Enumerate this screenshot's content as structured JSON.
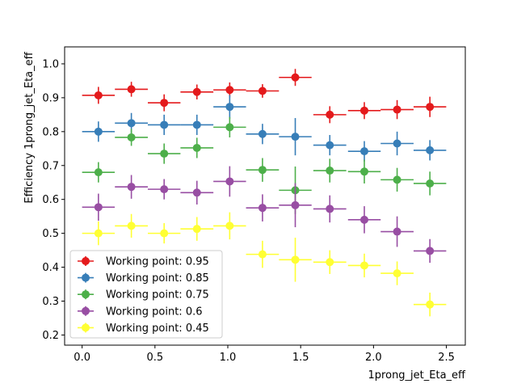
{
  "chart_data": {
    "type": "scatter",
    "title": "",
    "xlabel": "1prong_jet_Eta_eff",
    "ylabel": "Efficiency 1prong_jet_Eta_eff",
    "xlim": [
      -0.12,
      2.63
    ],
    "ylim": [
      0.17,
      1.05
    ],
    "xticks": [
      "0.0",
      "0.5",
      "1.0",
      "1.5",
      "2.0",
      "2.5"
    ],
    "yticks": [
      "0.2",
      "0.3",
      "0.4",
      "0.5",
      "0.6",
      "0.7",
      "0.8",
      "0.9",
      "1.0"
    ],
    "legend_position": "lower-left",
    "series": [
      {
        "name": "Working point: 0.95",
        "color": "#e41a1c",
        "x": [
          0.112,
          0.338,
          0.563,
          0.788,
          1.013,
          1.238,
          1.463,
          1.7,
          1.937,
          2.162,
          2.387
        ],
        "xerr": [
          0.112,
          0.113,
          0.112,
          0.113,
          0.112,
          0.113,
          0.112,
          0.113,
          0.112,
          0.113,
          0.112
        ],
        "y": [
          0.907,
          0.925,
          0.885,
          0.917,
          0.923,
          0.92,
          0.96,
          0.85,
          0.862,
          0.865,
          0.873
        ],
        "yerr": [
          0.025,
          0.022,
          0.025,
          0.022,
          0.022,
          0.02,
          0.025,
          0.025,
          0.025,
          0.028,
          0.03
        ]
      },
      {
        "name": "Working point: 0.85",
        "color": "#377eb8",
        "x": [
          0.112,
          0.338,
          0.563,
          0.788,
          1.013,
          1.238,
          1.463,
          1.7,
          1.937,
          2.162,
          2.387
        ],
        "xerr": [
          0.112,
          0.113,
          0.112,
          0.113,
          0.112,
          0.113,
          0.112,
          0.113,
          0.112,
          0.113,
          0.112
        ],
        "y": [
          0.8,
          0.825,
          0.82,
          0.82,
          0.873,
          0.793,
          0.785,
          0.76,
          0.742,
          0.765,
          0.745
        ],
        "yerr": [
          0.03,
          0.03,
          0.03,
          0.03,
          0.035,
          0.03,
          0.055,
          0.03,
          0.03,
          0.035,
          0.03
        ]
      },
      {
        "name": "Working point: 0.75",
        "color": "#4daf4a",
        "x": [
          0.112,
          0.338,
          0.563,
          0.788,
          1.013,
          1.238,
          1.463,
          1.7,
          1.937,
          2.162,
          2.387
        ],
        "xerr": [
          0.112,
          0.113,
          0.112,
          0.113,
          0.112,
          0.113,
          0.112,
          0.113,
          0.112,
          0.113,
          0.112
        ],
        "y": [
          0.68,
          0.783,
          0.735,
          0.752,
          0.813,
          0.687,
          0.627,
          0.685,
          0.682,
          0.658,
          0.647
        ],
        "yerr": [
          0.03,
          0.025,
          0.03,
          0.03,
          0.03,
          0.035,
          0.07,
          0.035,
          0.035,
          0.035,
          0.035
        ]
      },
      {
        "name": "Working point: 0.6",
        "color": "#984ea3",
        "x": [
          0.112,
          0.338,
          0.563,
          0.788,
          1.013,
          1.238,
          1.463,
          1.7,
          1.937,
          2.162,
          2.387
        ],
        "xerr": [
          0.112,
          0.113,
          0.112,
          0.113,
          0.112,
          0.113,
          0.112,
          0.113,
          0.112,
          0.113,
          0.112
        ],
        "y": [
          0.577,
          0.637,
          0.63,
          0.62,
          0.653,
          0.575,
          0.583,
          0.572,
          0.54,
          0.505,
          0.448
        ],
        "yerr": [
          0.04,
          0.035,
          0.03,
          0.035,
          0.045,
          0.04,
          0.065,
          0.04,
          0.04,
          0.045,
          0.035
        ]
      },
      {
        "name": "Working point: 0.45",
        "color": "#ffff33",
        "x": [
          0.112,
          0.338,
          0.563,
          0.788,
          1.013,
          1.238,
          1.463,
          1.7,
          1.937,
          2.162,
          2.387
        ],
        "xerr": [
          0.112,
          0.113,
          0.112,
          0.113,
          0.112,
          0.113,
          0.112,
          0.113,
          0.112,
          0.113,
          0.112
        ],
        "y": [
          0.5,
          0.522,
          0.5,
          0.513,
          0.522,
          0.438,
          0.422,
          0.415,
          0.405,
          0.382,
          0.29
        ],
        "yerr": [
          0.035,
          0.035,
          0.03,
          0.035,
          0.04,
          0.04,
          0.065,
          0.035,
          0.035,
          0.035,
          0.035
        ]
      }
    ]
  }
}
